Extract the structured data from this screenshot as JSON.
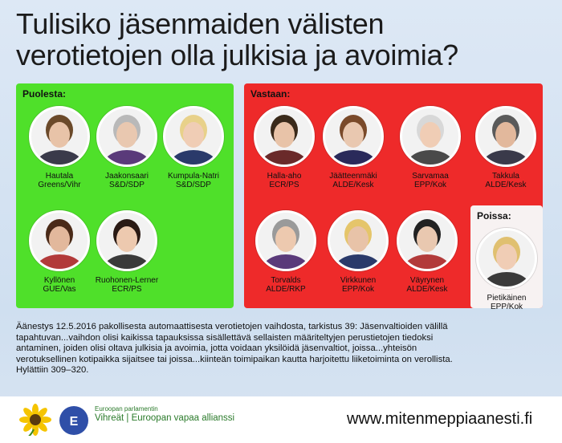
{
  "title": {
    "line1": "Tulisiko jäsenmaiden välisten",
    "line2": "verotietojen olla julkisia ja avoimia?"
  },
  "colors": {
    "for_panel": "#4fe02a",
    "against_panel": "#ee2a2a",
    "absent_panel": "#f7f2f2"
  },
  "for": {
    "heading": "Puolesta:",
    "meps": [
      {
        "name": "Hautala",
        "party": "Greens/Vihr"
      },
      {
        "name": "Jaakonsaari",
        "party": "S&D/SDP"
      },
      {
        "name": "Kumpula-Natri",
        "party": "S&D/SDP"
      },
      {
        "name": "Kyllönen",
        "party": "GUE/Vas"
      },
      {
        "name": "Ruohonen-Lerner",
        "party": "ECR/PS"
      }
    ]
  },
  "against": {
    "heading": "Vastaan:",
    "meps": [
      {
        "name": "Halla-aho",
        "party": "ECR/PS"
      },
      {
        "name": "Jäätteenmäki",
        "party": "ALDE/Kesk"
      },
      {
        "name": "Sarvamaa",
        "party": "EPP/Kok"
      },
      {
        "name": "Takkula",
        "party": "ALDE/Kesk"
      },
      {
        "name": "Torvalds",
        "party": "ALDE/RKP"
      },
      {
        "name": "Virkkunen",
        "party": "EPP/Kok"
      },
      {
        "name": "Väyrynen",
        "party": "ALDE/Kesk"
      }
    ]
  },
  "absent": {
    "heading": "Poissa:",
    "meps": [
      {
        "name": "Pietikäinen",
        "party": "EPP/Kok"
      }
    ]
  },
  "description": {
    "line1": "Äänestys 12.5.2016 pakollisesta automaattisesta verotietojen vaihdosta, tarkistus 39: Jäsenvaltioiden välillä",
    "line2": "tapahtuvan...vaihdon olisi kaikissa tapauksissa sisällettävä sellaisten määriteltyjen perustietojen tiedoksi",
    "line3": "antaminen, joiden olisi oltava julkisia ja avoimia, jotta voidaan yksilöidä jäsenvaltiot, joissa...yhteisön",
    "line4": "verotuksellinen kotipaikka sijaitsee tai joissa...kiinteän toimipaikan kautta harjoitettu liiketoiminta on verollista.",
    "line5": "Hylättiin 309–320."
  },
  "footer": {
    "org_small": "Euroopan parlamentin",
    "org_group": "Vihreät | Euroopan vapaa allianssi",
    "website": "www.mitenmeppiaanesti.fi"
  }
}
